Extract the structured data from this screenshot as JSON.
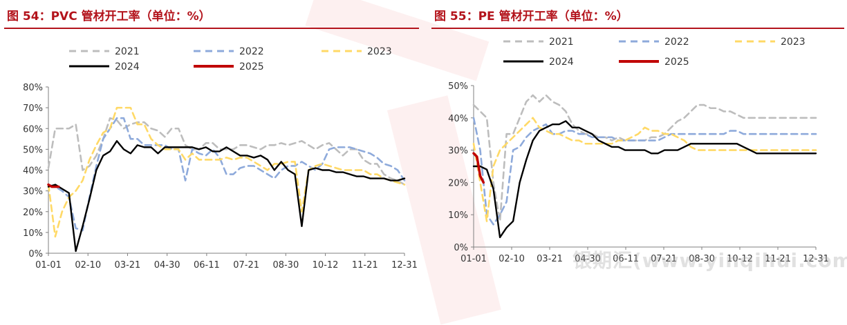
{
  "watermark": "银期汇(www.yinqihui.com)",
  "colors": {
    "y2021": "#bdbdbd",
    "y2022": "#8eaadb",
    "y2023": "#ffd966",
    "y2024": "#000000",
    "y2025": "#c00000",
    "title": "#b3131b"
  },
  "chart_data": [
    {
      "type": "line",
      "title": "图 54：PVC 管材开工率（单位：%）",
      "xlabel": "",
      "ylabel": "",
      "ylim": [
        0,
        80
      ],
      "yticks": [
        "0%",
        "10%",
        "20%",
        "30%",
        "40%",
        "50%",
        "60%",
        "70%",
        "80%"
      ],
      "xticks": [
        "01-01",
        "02-10",
        "03-21",
        "04-30",
        "06-11",
        "07-21",
        "08-30",
        "10-12",
        "11-21",
        "12-31"
      ],
      "legend_position": "top",
      "series": [
        {
          "name": "2021",
          "style": "dashed",
          "color": "#bdbdbd",
          "x": [
            0,
            1,
            2,
            3,
            4,
            5,
            6,
            7,
            8,
            9,
            10,
            11,
            12,
            13,
            14,
            15,
            16,
            17,
            18,
            19,
            20,
            21,
            22,
            23,
            24,
            25,
            26,
            27,
            28,
            29,
            30,
            31,
            32,
            33,
            34,
            35,
            36,
            37,
            38,
            39,
            40,
            41,
            42,
            43,
            44,
            45,
            46,
            47,
            48,
            49,
            50,
            51,
            52
          ],
          "values": [
            41,
            60,
            60,
            60,
            62,
            40,
            42,
            47,
            55,
            65,
            64,
            60,
            62,
            63,
            63,
            60,
            59,
            56,
            60,
            60,
            52,
            50,
            50,
            53,
            53,
            50,
            50,
            50,
            52,
            52,
            51,
            50,
            52,
            52,
            53,
            52,
            53,
            54,
            52,
            50,
            52,
            53,
            50,
            47,
            50,
            50,
            45,
            43,
            43,
            38,
            36,
            35,
            33
          ]
        },
        {
          "name": "2022",
          "style": "dashed",
          "color": "#8eaadb",
          "x": [
            0,
            1,
            2,
            3,
            4,
            5,
            6,
            7,
            8,
            9,
            10,
            11,
            12,
            13,
            14,
            15,
            16,
            17,
            18,
            19,
            20,
            21,
            22,
            23,
            24,
            25,
            26,
            27,
            28,
            29,
            30,
            31,
            32,
            33,
            34,
            35,
            36,
            37,
            38,
            39,
            40,
            41,
            42,
            43,
            44,
            45,
            46,
            47,
            48,
            49,
            50,
            51,
            52
          ],
          "values": [
            33,
            32,
            30,
            27,
            12,
            11,
            27,
            42,
            55,
            60,
            65,
            65,
            55,
            55,
            52,
            52,
            52,
            52,
            50,
            50,
            35,
            50,
            48,
            47,
            50,
            46,
            38,
            38,
            41,
            42,
            42,
            40,
            38,
            36,
            40,
            42,
            42,
            44,
            42,
            40,
            43,
            50,
            51,
            51,
            51,
            50,
            49,
            48,
            46,
            43,
            42,
            40,
            35
          ]
        },
        {
          "name": "2023",
          "style": "dashed",
          "color": "#ffd966",
          "x": [
            0,
            1,
            2,
            3,
            4,
            5,
            6,
            7,
            8,
            9,
            10,
            11,
            12,
            13,
            14,
            15,
            16,
            17,
            18,
            19,
            20,
            21,
            22,
            23,
            24,
            25,
            26,
            27,
            28,
            29,
            30,
            31,
            32,
            33,
            34,
            35,
            36,
            37,
            38,
            39,
            40,
            41,
            42,
            43,
            44,
            45,
            46,
            47,
            48,
            49,
            50,
            51,
            52
          ],
          "values": [
            33,
            8,
            20,
            27,
            30,
            35,
            45,
            52,
            58,
            60,
            70,
            70,
            70,
            62,
            62,
            55,
            52,
            50,
            50,
            50,
            45,
            48,
            45,
            45,
            45,
            45,
            46,
            45,
            46,
            46,
            44,
            42,
            40,
            43,
            43,
            44,
            44,
            20,
            40,
            42,
            43,
            42,
            41,
            40,
            40,
            40,
            40,
            38,
            38,
            36,
            35,
            34,
            33
          ]
        },
        {
          "name": "2024",
          "style": "solid",
          "color": "#000000",
          "x": [
            0,
            1,
            2,
            3,
            4,
            5,
            6,
            7,
            8,
            9,
            10,
            11,
            12,
            13,
            14,
            15,
            16,
            17,
            18,
            19,
            20,
            21,
            22,
            23,
            24,
            25,
            26,
            27,
            28,
            29,
            30,
            31,
            32,
            33,
            34,
            35,
            36,
            37,
            38,
            39,
            40,
            41,
            42,
            43,
            44,
            45,
            46,
            47,
            48,
            49,
            50,
            51,
            52
          ],
          "values": [
            32,
            33,
            31,
            29,
            1,
            13,
            26,
            40,
            47,
            49,
            54,
            50,
            48,
            52,
            51,
            51,
            48,
            51,
            51,
            51,
            51,
            51,
            50,
            51,
            49,
            49,
            51,
            49,
            47,
            47,
            46,
            47,
            45,
            40,
            44,
            40,
            38,
            13,
            40,
            41,
            40,
            40,
            39,
            39,
            38,
            37,
            37,
            36,
            36,
            36,
            35,
            35,
            36
          ]
        },
        {
          "name": "2025",
          "style": "solid",
          "color": "#c00000",
          "x": [
            0,
            0.5,
            1,
            1.5
          ],
          "values": [
            33,
            32,
            32,
            32
          ]
        }
      ]
    },
    {
      "type": "line",
      "title": "图 55：PE 管材开工率（单位：%）",
      "xlabel": "",
      "ylabel": "",
      "ylim": [
        0,
        50
      ],
      "yticks": [
        "0%",
        "10%",
        "20%",
        "30%",
        "40%",
        "50%"
      ],
      "xticks": [
        "01-01",
        "02-10",
        "03-21",
        "04-30",
        "06-11",
        "07-21",
        "08-30",
        "10-12",
        "11-21",
        "12-31"
      ],
      "legend_position": "top",
      "series": [
        {
          "name": "2021",
          "style": "dashed",
          "color": "#bdbdbd",
          "x": [
            0,
            1,
            2,
            3,
            4,
            5,
            6,
            7,
            8,
            9,
            10,
            11,
            12,
            13,
            14,
            15,
            16,
            17,
            18,
            19,
            20,
            21,
            22,
            23,
            24,
            25,
            26,
            27,
            28,
            29,
            30,
            31,
            32,
            33,
            34,
            35,
            36,
            37,
            38,
            39,
            40,
            41,
            42,
            43,
            44,
            45,
            46,
            47,
            48,
            49,
            50,
            51,
            52
          ],
          "values": [
            44,
            42,
            40,
            20,
            8,
            35,
            35,
            40,
            45,
            47,
            45,
            47,
            45,
            44,
            42,
            38,
            36,
            35,
            35,
            34,
            34,
            33,
            34,
            33,
            33,
            33,
            33,
            34,
            34,
            35,
            37,
            39,
            40,
            42,
            44,
            44,
            43,
            43,
            42,
            42,
            41,
            40,
            40,
            40,
            40,
            40,
            40,
            40,
            40,
            40,
            40,
            40,
            40
          ]
        },
        {
          "name": "2022",
          "style": "dashed",
          "color": "#8eaadb",
          "x": [
            0,
            1,
            2,
            3,
            4,
            5,
            6,
            7,
            8,
            9,
            10,
            11,
            12,
            13,
            14,
            15,
            16,
            17,
            18,
            19,
            20,
            21,
            22,
            23,
            24,
            25,
            26,
            27,
            28,
            29,
            30,
            31,
            32,
            33,
            34,
            35,
            36,
            37,
            38,
            39,
            40,
            41,
            42,
            43,
            44,
            45,
            46,
            47,
            48,
            49,
            50,
            51,
            52
          ],
          "values": [
            40,
            30,
            10,
            7,
            10,
            14,
            30,
            31,
            34,
            36,
            37,
            38,
            35,
            35,
            36,
            36,
            35,
            35,
            34,
            34,
            34,
            34,
            33,
            33,
            33,
            33,
            33,
            33,
            33,
            34,
            35,
            35,
            35,
            35,
            35,
            35,
            35,
            35,
            35,
            36,
            36,
            35,
            35,
            35,
            35,
            35,
            35,
            35,
            35,
            35,
            35,
            35,
            35
          ]
        },
        {
          "name": "2023",
          "style": "dashed",
          "color": "#ffd966",
          "x": [
            0,
            1,
            2,
            3,
            4,
            5,
            6,
            7,
            8,
            9,
            10,
            11,
            12,
            13,
            14,
            15,
            16,
            17,
            18,
            19,
            20,
            21,
            22,
            23,
            24,
            25,
            26,
            27,
            28,
            29,
            30,
            31,
            32,
            33,
            34,
            35,
            36,
            37,
            38,
            39,
            40,
            41,
            42,
            43,
            44,
            45,
            46,
            47,
            48,
            49,
            50,
            51,
            52
          ],
          "values": [
            32,
            20,
            8,
            25,
            30,
            32,
            34,
            36,
            38,
            40,
            37,
            36,
            35,
            35,
            34,
            33,
            33,
            32,
            32,
            32,
            32,
            32,
            33,
            33,
            34,
            35,
            37,
            36,
            36,
            35,
            35,
            34,
            33,
            31,
            30,
            30,
            30,
            30,
            30,
            30,
            30,
            30,
            30,
            30,
            30,
            30,
            30,
            30,
            30,
            30,
            30,
            30,
            30
          ]
        },
        {
          "name": "2024",
          "style": "solid",
          "color": "#000000",
          "x": [
            0,
            1,
            2,
            3,
            4,
            5,
            6,
            7,
            8,
            9,
            10,
            11,
            12,
            13,
            14,
            15,
            16,
            17,
            18,
            19,
            20,
            21,
            22,
            23,
            24,
            25,
            26,
            27,
            28,
            29,
            30,
            31,
            32,
            33,
            34,
            35,
            36,
            37,
            38,
            39,
            40,
            41,
            42,
            43,
            44,
            45,
            46,
            47,
            48,
            49,
            50,
            51,
            52
          ],
          "values": [
            25,
            25,
            24,
            18,
            3,
            6,
            8,
            20,
            27,
            33,
            36,
            37,
            38,
            38,
            39,
            37,
            37,
            36,
            35,
            33,
            32,
            31,
            31,
            30,
            30,
            30,
            30,
            29,
            29,
            30,
            30,
            30,
            31,
            32,
            32,
            32,
            32,
            32,
            32,
            32,
            32,
            31,
            30,
            29,
            29,
            29,
            29,
            29,
            29,
            29,
            29,
            29,
            29
          ]
        },
        {
          "name": "2025",
          "style": "solid",
          "color": "#c00000",
          "x": [
            0,
            0.5,
            1,
            1.5
          ],
          "values": [
            29,
            28,
            22,
            20
          ]
        }
      ]
    }
  ]
}
